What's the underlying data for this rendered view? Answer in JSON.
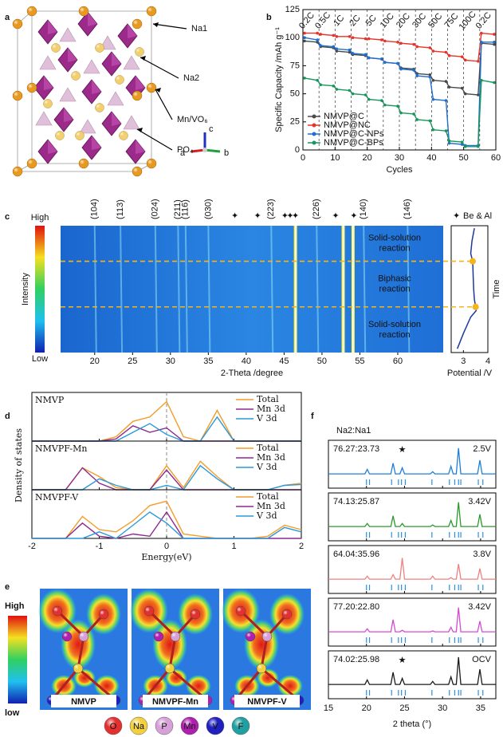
{
  "panel_labels": [
    "a",
    "b",
    "c",
    "d",
    "e",
    "f"
  ],
  "structure": {
    "labels": [
      "Na1",
      "Na2",
      "Mn/VO₆",
      "PO₄"
    ],
    "axes": [
      "c",
      "a",
      "b"
    ]
  },
  "chart_data": [
    {
      "type": "line",
      "x_label": "Cycles",
      "y_label": "Specific Capacity /mAh g⁻¹",
      "xlim": [
        0,
        60
      ],
      "xticks": [
        0,
        10,
        20,
        30,
        40,
        50,
        60
      ],
      "ylim": [
        0,
        125
      ],
      "yticks": [
        0,
        25,
        50,
        75,
        100,
        125
      ],
      "rate_labels": [
        "0.2C",
        "0.5C",
        "1C",
        "2C",
        "5C",
        "10C",
        "20C",
        "30C",
        "50C",
        "75C",
        "100C",
        "0.2C"
      ],
      "x": [
        0.5,
        4.5,
        5.5,
        9.5,
        10.5,
        14.5,
        15.5,
        19.5,
        20.5,
        24.5,
        25.5,
        29.5,
        30.5,
        34.5,
        35.5,
        39.5,
        40.5,
        44.5,
        45.5,
        49.5,
        50.5,
        54.5,
        55.5,
        59.5
      ],
      "series": [
        {
          "name": "NMVP@C",
          "color": "#4a4a4a",
          "values": [
            97,
            96,
            92,
            91,
            88,
            87,
            85,
            84,
            82,
            81,
            78,
            77,
            73,
            72,
            68,
            67,
            62,
            61,
            56,
            55,
            50,
            49,
            95,
            94
          ]
        },
        {
          "name": "NMVP@NC",
          "color": "#e8332a",
          "values": [
            104,
            104,
            103,
            102,
            101,
            101,
            100,
            99,
            99,
            98,
            97,
            96,
            95,
            94,
            92,
            91,
            88,
            87,
            84,
            83,
            80,
            79,
            104,
            103
          ]
        },
        {
          "name": "NMVP@C-NPs",
          "color": "#1f6fd0",
          "values": [
            100,
            98,
            93,
            92,
            90,
            89,
            86,
            85,
            82,
            81,
            78,
            77,
            72,
            71,
            66,
            65,
            45,
            44,
            6,
            5,
            4,
            4,
            96,
            96
          ]
        },
        {
          "name": "NMVP@C-BPs",
          "color": "#17975a",
          "values": [
            64,
            62,
            58,
            57,
            54,
            53,
            50,
            49,
            45,
            44,
            40,
            39,
            33,
            32,
            27,
            26,
            18,
            17,
            8,
            7,
            3,
            3,
            62,
            60
          ]
        }
      ]
    },
    {
      "type": "heatmap",
      "x_label": "2-Theta /degree",
      "xlim": [
        15.5,
        66
      ],
      "xticks": [
        20,
        25,
        30,
        35,
        40,
        45,
        50,
        55,
        60
      ],
      "scale_labels": [
        "High",
        "Low"
      ],
      "scale_title": "Intensity",
      "peaks": [
        {
          "label": "(104)",
          "x": 20.0
        },
        {
          "label": "(113)",
          "x": 23.4
        },
        {
          "label": "(024)",
          "x": 28.0
        },
        {
          "label": "(211)",
          "x": 31.0
        },
        {
          "label": "(116)",
          "x": 32.0
        },
        {
          "label": "(030)",
          "x": 35.0
        },
        {
          "label": "(223)",
          "x": 43.3
        },
        {
          "label": "(226)",
          "x": 49.3
        },
        {
          "label": "(140)",
          "x": 55.5
        },
        {
          "label": "(146)",
          "x": 61.3
        }
      ],
      "be_al": [
        38.5,
        41.5,
        45.1,
        45.8,
        46.5,
        51.8,
        54.2
      ],
      "marker": "✦",
      "marker_name": "Be & Al",
      "bright": [
        46.5,
        52.8,
        54.1
      ],
      "annotations": [
        [
          "Solid-solution",
          "reaction"
        ],
        [
          "Biphasic",
          "reaction"
        ],
        [
          "Solid-solution",
          "reaction"
        ]
      ]
    },
    {
      "type": "line",
      "x_label": "Potential /V",
      "y_label": "Time",
      "xlim": [
        2.5,
        4
      ],
      "xticks": [
        3,
        4
      ],
      "ylim": [
        0,
        1
      ],
      "x": [
        3.45,
        3.35,
        3.3,
        3.38,
        3.4,
        3.42,
        3.45,
        3.5,
        3.52,
        3.3,
        3.0,
        2.75
      ],
      "y": [
        0.02,
        0.12,
        0.22,
        0.28,
        0.4,
        0.5,
        0.58,
        0.64,
        0.67,
        0.72,
        0.85,
        0.97
      ],
      "color": "#1a3a9a",
      "markers": {
        "x": [
          3.38,
          3.5
        ],
        "y": [
          0.28,
          0.64
        ],
        "color": "#f5b41a"
      }
    },
    {
      "type": "line",
      "x_label": "Energy(eV)",
      "y_label": "Density of states",
      "xlim": [
        -2,
        2
      ],
      "xticks": [
        -2,
        -1,
        0,
        1,
        2
      ],
      "ylim": [
        0,
        1
      ],
      "x": [
        -2,
        -1.75,
        -1.5,
        -1.25,
        -1,
        -0.75,
        -0.5,
        -0.25,
        0,
        0.25,
        0.5,
        0.75,
        1,
        1.25,
        1.5,
        1.75,
        2
      ],
      "panels": [
        {
          "title": "NMVP",
          "series": [
            {
              "name": "Total",
              "color": "#f39c2a",
              "values": [
                0,
                0,
                0,
                0,
                0,
                0.1,
                0.45,
                0.55,
                0.9,
                0.1,
                0,
                0.7,
                0,
                0,
                0,
                0,
                0
              ]
            },
            {
              "name": "Mn 3d",
              "color": "#8e2a8e",
              "values": [
                0,
                0,
                0,
                0,
                0,
                0.05,
                0.35,
                0.2,
                0.3,
                0,
                0,
                0,
                0,
                0,
                0,
                0,
                0
              ]
            },
            {
              "name": "V 3d",
              "color": "#2a9ad8",
              "values": [
                0,
                0,
                0,
                0,
                0,
                0,
                0.2,
                0.4,
                0.15,
                0,
                0,
                0.55,
                0,
                0,
                0,
                0,
                0
              ]
            }
          ]
        },
        {
          "title": "NMVPF-Mn",
          "series": [
            {
              "name": "Total",
              "color": "#f39c2a",
              "values": [
                0,
                0,
                0,
                0.5,
                0.3,
                0.05,
                0,
                0,
                0.55,
                0.05,
                0.65,
                0.3,
                0,
                0,
                0,
                0.1,
                0.15
              ]
            },
            {
              "name": "Mn 3d",
              "color": "#8e2a8e",
              "values": [
                0,
                0,
                0,
                0.5,
                0.15,
                0,
                0,
                0,
                0.45,
                0,
                0,
                0,
                0,
                0,
                0,
                0,
                0
              ]
            },
            {
              "name": "V 3d",
              "color": "#2a9ad8",
              "values": [
                0,
                0,
                0,
                0,
                0.25,
                0.1,
                0,
                0,
                0.1,
                0,
                0.55,
                0.25,
                0,
                0,
                0,
                0.1,
                0.12
              ]
            }
          ]
        },
        {
          "title": "NMVPF-V",
          "series": [
            {
              "name": "Total",
              "color": "#f39c2a",
              "values": [
                0,
                0,
                0,
                0.5,
                0.2,
                0.15,
                0.4,
                0.75,
                0.85,
                0.1,
                0.05,
                0,
                0,
                0,
                0.05,
                0.3,
                0.2
              ]
            },
            {
              "name": "Mn 3d",
              "color": "#8e2a8e",
              "values": [
                0,
                0,
                0,
                0.35,
                0.05,
                0,
                0.1,
                0.05,
                0.6,
                0,
                0,
                0,
                0,
                0,
                0,
                0,
                0
              ]
            },
            {
              "name": "V 3d",
              "color": "#2a9ad8",
              "values": [
                0,
                0,
                0,
                0,
                0.15,
                0,
                0.3,
                0.6,
                0.35,
                0,
                0,
                0,
                0,
                0,
                0,
                0.25,
                0.15
              ]
            }
          ]
        }
      ]
    },
    {
      "type": "line",
      "title": "Na2:Na1",
      "x_label": "2 theta (°)",
      "xlim": [
        15,
        37
      ],
      "xticks": [
        15,
        20,
        25,
        30,
        35
      ],
      "ylim": [
        0,
        1
      ],
      "x": [
        15,
        19.8,
        20.1,
        20.4,
        23.2,
        23.5,
        23.8,
        24.4,
        24.7,
        25,
        28.4,
        28.7,
        29,
        30.8,
        31.1,
        31.4,
        31.8,
        32.1,
        32.4,
        34.6,
        34.9,
        35.2,
        37
      ],
      "reflections": [
        20.0,
        20.4,
        23.3,
        24.2,
        24.6,
        25.1,
        28.6,
        30.9,
        31.6,
        32.1,
        32.4,
        34.7,
        35.3
      ],
      "reflection_color": "#2a90e0",
      "panels": [
        {
          "ratio": "76.27:23.73",
          "voltage": "2.5V",
          "color": "#1e7fd8",
          "ratio_color": "#29a3e0",
          "voltage_color": "#29a3e0",
          "star": "★",
          "star_x": 24.7,
          "values": [
            0.05,
            0.05,
            0.2,
            0.05,
            0.05,
            0.4,
            0.05,
            0.05,
            0.25,
            0.05,
            0.05,
            0.12,
            0.05,
            0.05,
            0.3,
            0.05,
            0.05,
            0.9,
            0.05,
            0.05,
            0.5,
            0.05,
            0.05
          ]
        },
        {
          "ratio": "74.13:25.87",
          "voltage": "3.42V",
          "color": "#2a9a2a",
          "ratio_color": "#1c8a1c",
          "voltage_color": "#1c8a1c",
          "values": [
            0.05,
            0.05,
            0.15,
            0.05,
            0.05,
            0.4,
            0.05,
            0.05,
            0.15,
            0.05,
            0.05,
            0.1,
            0.05,
            0.05,
            0.25,
            0.05,
            0.05,
            0.85,
            0.05,
            0.05,
            0.45,
            0.05,
            0.05
          ]
        },
        {
          "ratio": "64.04:35.96",
          "voltage": "3.8V",
          "color": "#f08080",
          "ratio_color": "#f08080",
          "voltage_color": "#e01010",
          "values": [
            0.05,
            0.05,
            0.15,
            0.05,
            0.05,
            0.2,
            0.05,
            0.05,
            0.75,
            0.05,
            0.05,
            0.15,
            0.05,
            0.05,
            0.1,
            0.05,
            0.05,
            0.55,
            0.05,
            0.05,
            0.4,
            0.05,
            0.05
          ]
        },
        {
          "ratio": "77.20:22.80",
          "voltage": "3.42V",
          "color": "#d24bd2",
          "ratio_color": "#e040e0",
          "voltage_color": "#8a1a6a",
          "values": [
            0.05,
            0.05,
            0.15,
            0.05,
            0.05,
            0.45,
            0.05,
            0.05,
            0.1,
            0.05,
            0.05,
            0.08,
            0.05,
            0.05,
            0.2,
            0.05,
            0.05,
            0.85,
            0.05,
            0.05,
            0.4,
            0.05,
            0.05
          ]
        },
        {
          "ratio": "74.02:25.98",
          "voltage": "OCV",
          "color": "#1a1a1a",
          "ratio_color": "#1fb5c5",
          "voltage_color": "#1fb5c5",
          "star": "★",
          "star_x": 24.7,
          "values": [
            0.05,
            0.05,
            0.2,
            0.05,
            0.05,
            0.45,
            0.05,
            0.05,
            0.25,
            0.05,
            0.05,
            0.15,
            0.05,
            0.05,
            0.3,
            0.05,
            0.05,
            0.95,
            0.05,
            0.05,
            0.55,
            0.05,
            0.05
          ]
        }
      ]
    }
  ],
  "charge_density": {
    "scale": [
      "High",
      "low"
    ],
    "maps": [
      "NMVP",
      "NMVPF-Mn",
      "NMVPF-V"
    ],
    "elements": [
      {
        "symbol": "O",
        "color": "#e53030"
      },
      {
        "symbol": "Na",
        "color": "#f2d040"
      },
      {
        "symbol": "P",
        "color": "#d8a0d8"
      },
      {
        "symbol": "Mn",
        "color": "#b020b0"
      },
      {
        "symbol": "V",
        "color": "#2020c0"
      },
      {
        "symbol": "F",
        "color": "#20a0a0"
      }
    ]
  }
}
